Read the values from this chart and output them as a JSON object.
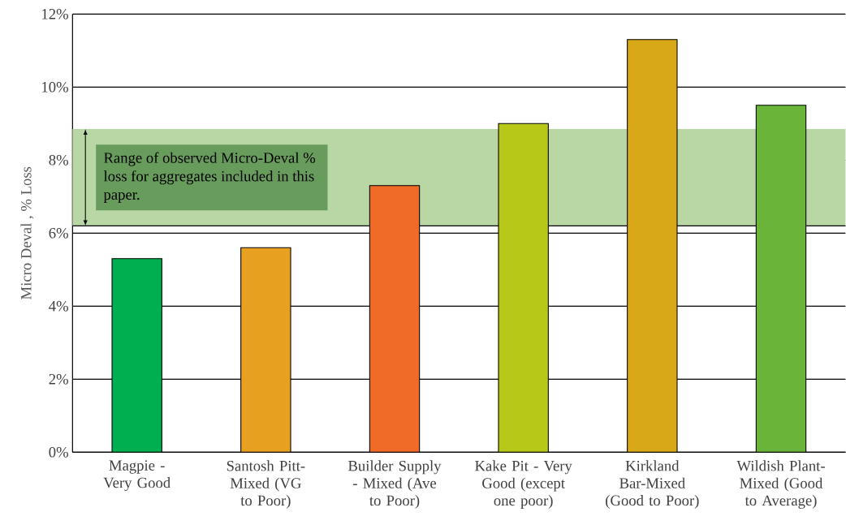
{
  "chart_data": {
    "type": "bar",
    "ylabel": "Micro Deval , % Loss",
    "categories": [
      "Magpie - Very Good",
      "Santosh Pitt-Mixed (VG to Poor)",
      "Builder Supply - Mixed (Ave to Poor)",
      "Kake Pit - Very Good (except one poor)",
      "Kirkland Bar-Mixed (Good to Poor)",
      "Wildish Plant-Mixed (Good to Average)"
    ],
    "values": [
      5.3,
      5.6,
      7.3,
      9.0,
      11.3,
      9.5
    ],
    "colors": [
      "#00b050",
      "#e8a020",
      "#f06a28",
      "#b8c818",
      "#d8a818",
      "#6ab43a"
    ],
    "ylim": [
      0,
      12
    ],
    "yticks": [
      {
        "value": 0,
        "label": "0%"
      },
      {
        "value": 2,
        "label": "2%"
      },
      {
        "value": 4,
        "label": "4%"
      },
      {
        "value": 6,
        "label": "6%"
      },
      {
        "value": 8,
        "label": "8%"
      },
      {
        "value": 10,
        "label": "10%"
      },
      {
        "value": 12,
        "label": "12%"
      }
    ],
    "grid": "y",
    "bands": [
      {
        "axis": "y",
        "from": 6.2,
        "to": 8.85,
        "label": "Range of observed Micro-Deval % loss for aggregates included in this paper.",
        "color": "#b9d7a5"
      }
    ]
  }
}
